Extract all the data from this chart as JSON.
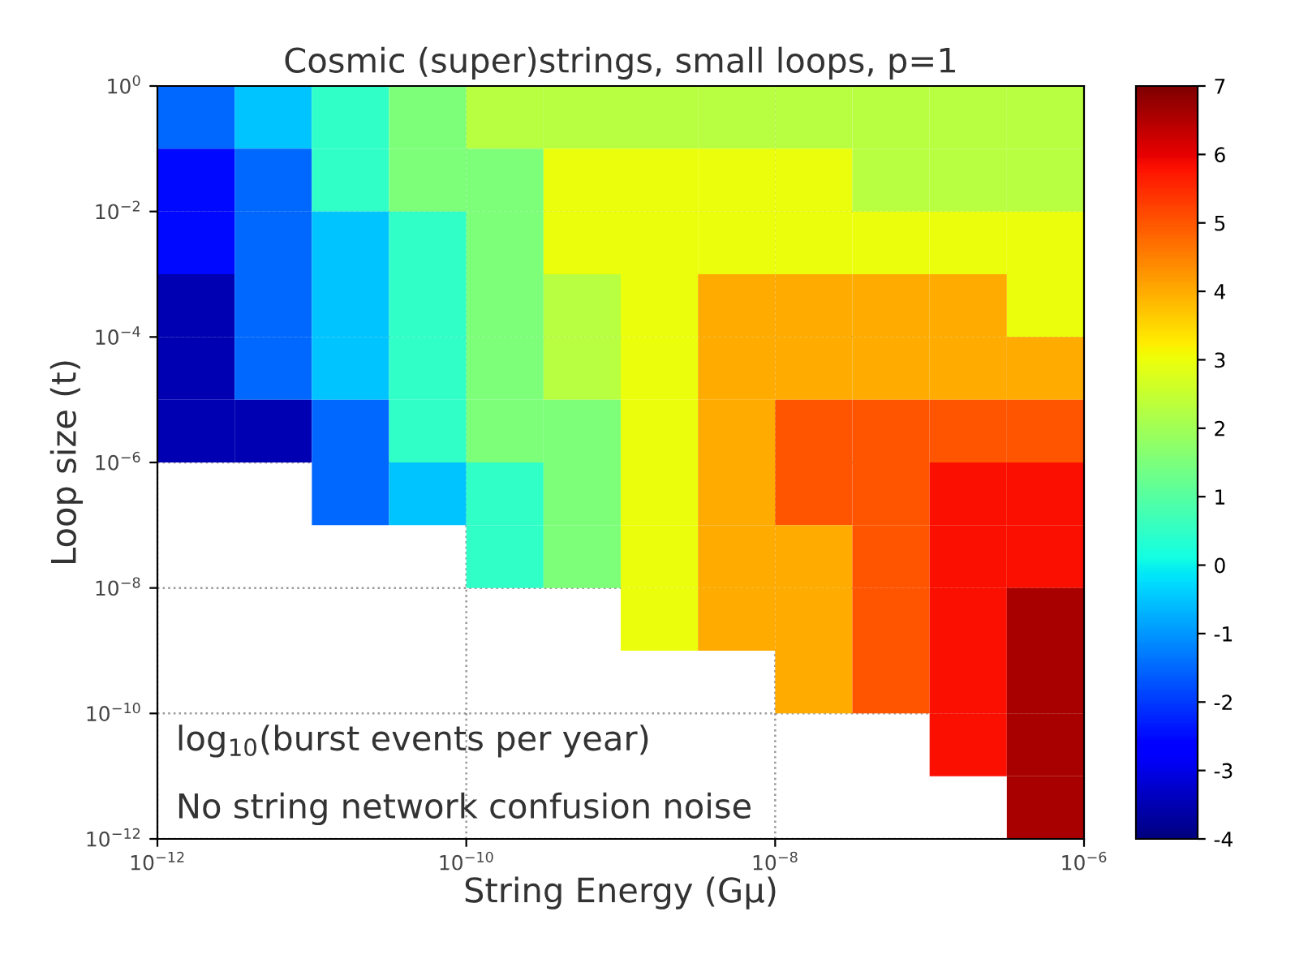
{
  "chart_data": {
    "type": "heatmap",
    "title": "Cosmic (super)strings, small loops, p=1",
    "xlabel": "String Energy (Gμ)",
    "ylabel": "Loop size (t)",
    "annotations": [
      "log$_{10}$(burst events per year)",
      "No string network confusion noise"
    ],
    "log": "xy",
    "xlim": [
      1e-12,
      1e-06
    ],
    "ylim": [
      1e-12,
      1
    ],
    "xticks": [
      {
        "value": 1e-12,
        "label": "10$^{−12}$"
      },
      {
        "value": 1e-10,
        "label": "10$^{−10}$"
      },
      {
        "value": 1e-08,
        "label": "10$^{−8}$"
      },
      {
        "value": 1e-06,
        "label": "10$^{−6}$"
      }
    ],
    "yticks": [
      {
        "value": 1e-12,
        "label": "10$^{−12}$"
      },
      {
        "value": 1e-10,
        "label": "10$^{−10}$"
      },
      {
        "value": 1e-08,
        "label": "10$^{−8}$"
      },
      {
        "value": 1e-06,
        "label": "10$^{−6}$"
      },
      {
        "value": 0.0001,
        "label": "10$^{−4}$"
      },
      {
        "value": 0.01,
        "label": "10$^{−2}$"
      },
      {
        "value": 1,
        "label": "10$^{0}$"
      }
    ],
    "grid": true,
    "line_style": "dotted",
    "clim": [
      -4,
      7
    ],
    "cticks": [
      -4,
      -3,
      -2,
      -1,
      0,
      1,
      2,
      3,
      4,
      5,
      6,
      7
    ],
    "x": [
      1.78e-12,
      5.62e-12,
      1.78e-11,
      5.62e-11,
      1.78e-10,
      5.62e-10,
      1.78e-09,
      5.62e-09,
      1.78e-08,
      5.62e-08,
      1.78e-07,
      5.62e-07
    ],
    "y": [
      0.316,
      0.0316,
      0.00316,
      0.000316,
      3.16e-05,
      3.16e-06,
      3.16e-07,
      3.16e-08,
      3.16e-09,
      3.16e-10,
      3.16e-11,
      3.16e-12
    ],
    "cells": [
      [
        -1.5,
        -0.5,
        0.5,
        1.5,
        2.3,
        2.3,
        2.3,
        2.3,
        2.3,
        2.3,
        2.3,
        2.3
      ],
      [
        -2.5,
        -1.5,
        0.5,
        1.5,
        1.5,
        3.0,
        3.0,
        3.0,
        3.0,
        2.3,
        2.3,
        2.3
      ],
      [
        -2.5,
        -1.5,
        -0.5,
        0.5,
        1.5,
        3.0,
        3.0,
        3.0,
        3.0,
        3.0,
        3.0,
        3.0
      ],
      [
        -3.5,
        -1.5,
        -0.5,
        0.5,
        1.5,
        2.3,
        3.0,
        4.0,
        4.0,
        4.0,
        4.0,
        3.0
      ],
      [
        -3.5,
        -1.5,
        -0.5,
        0.5,
        1.5,
        2.3,
        3.0,
        4.0,
        4.0,
        4.0,
        4.0,
        4.0
      ],
      [
        -3.5,
        -3.5,
        -1.5,
        0.5,
        1.5,
        1.5,
        3.0,
        4.0,
        5.0,
        5.0,
        5.0,
        5.0
      ],
      [
        null,
        null,
        -1.5,
        -0.5,
        0.5,
        1.5,
        3.0,
        4.0,
        5.0,
        5.0,
        5.8,
        5.8
      ],
      [
        null,
        null,
        null,
        null,
        0.5,
        1.5,
        3.0,
        4.0,
        4.0,
        5.0,
        5.8,
        5.8
      ],
      [
        null,
        null,
        null,
        null,
        null,
        null,
        3.0,
        4.0,
        4.0,
        5.0,
        5.8,
        6.6
      ],
      [
        null,
        null,
        null,
        null,
        null,
        null,
        null,
        null,
        4.0,
        5.0,
        5.8,
        6.6
      ],
      [
        null,
        null,
        null,
        null,
        null,
        null,
        null,
        null,
        null,
        null,
        5.8,
        6.6
      ],
      [
        null,
        null,
        null,
        null,
        null,
        null,
        null,
        null,
        null,
        null,
        null,
        6.6
      ]
    ]
  }
}
